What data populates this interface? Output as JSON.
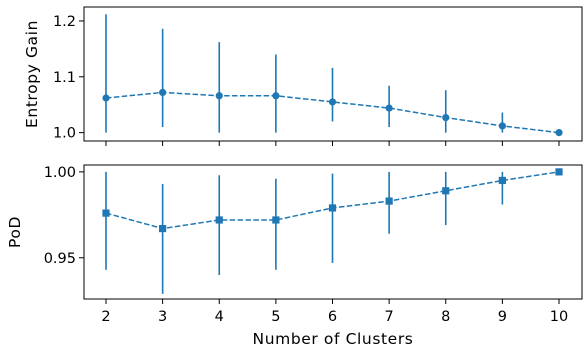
{
  "chart_data": [
    {
      "type": "line",
      "panel": "top",
      "xlabel": "",
      "ylabel": "Entropy Gain",
      "x": [
        2,
        3,
        4,
        5,
        6,
        7,
        8,
        9,
        10
      ],
      "x_ticks": [
        2,
        3,
        4,
        5,
        6,
        7,
        8,
        9,
        10
      ],
      "ylim": [
        0.985,
        1.225
      ],
      "y_ticks": [
        1.0,
        1.1,
        1.2
      ],
      "y_tick_labels": [
        "1.0",
        "1.1",
        "1.2"
      ],
      "series": [
        {
          "values": [
            1.062,
            1.072,
            1.066,
            1.066,
            1.055,
            1.044,
            1.027,
            1.012,
            1.0
          ],
          "err_low": [
            1.0,
            1.01,
            1.0,
            1.0,
            1.02,
            1.01,
            1.0,
            1.0,
            1.0
          ],
          "err_high": [
            1.212,
            1.186,
            1.162,
            1.14,
            1.116,
            1.084,
            1.076,
            1.036,
            1.0
          ],
          "marker": "circle",
          "linestyle": "dashed",
          "color": "#1f77b4"
        }
      ],
      "grid": false
    },
    {
      "type": "line",
      "panel": "bottom",
      "xlabel": "Number of Clusters",
      "ylabel": "PoD",
      "x": [
        2,
        3,
        4,
        5,
        6,
        7,
        8,
        9,
        10
      ],
      "x_ticks": [
        2,
        3,
        4,
        5,
        6,
        7,
        8,
        9,
        10
      ],
      "x_tick_labels": [
        "2",
        "3",
        "4",
        "5",
        "6",
        "7",
        "8",
        "9",
        "10"
      ],
      "ylim": [
        0.926,
        1.004
      ],
      "y_ticks": [
        0.95,
        1.0
      ],
      "y_tick_labels": [
        "0.95",
        "1.00"
      ],
      "series": [
        {
          "values": [
            0.976,
            0.967,
            0.972,
            0.972,
            0.979,
            0.983,
            0.989,
            0.995,
            1.0
          ],
          "err_low": [
            0.943,
            0.929,
            0.94,
            0.943,
            0.947,
            0.964,
            0.969,
            0.981,
            1.0
          ],
          "err_high": [
            1.0,
            0.993,
            0.998,
            0.996,
            0.999,
            1.0,
            1.0,
            1.0,
            1.0
          ],
          "marker": "square",
          "linestyle": "dashed",
          "color": "#1f77b4"
        }
      ],
      "grid": false
    }
  ]
}
